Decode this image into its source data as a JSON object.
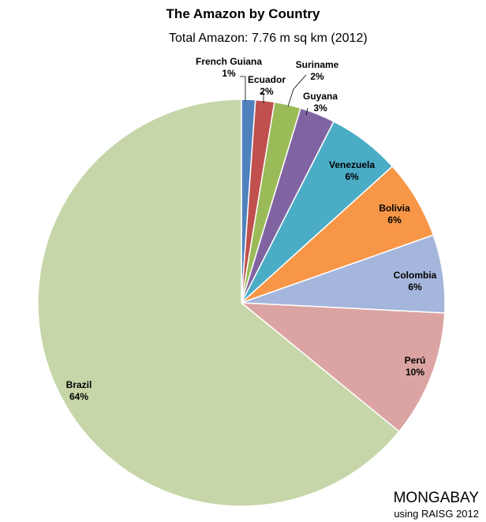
{
  "chart_data": {
    "type": "pie",
    "title": "The Amazon by Country",
    "subtitle": "Total Amazon: 7.76 m sq km (2012)",
    "slices": [
      {
        "label": "French Guiana",
        "pct_label": "1%",
        "value": 1.1,
        "color": "#4f81bd"
      },
      {
        "label": "Ecuador",
        "pct_label": "2%",
        "value": 1.5,
        "color": "#c0504d"
      },
      {
        "label": "Suriname",
        "pct_label": "2%",
        "value": 2.1,
        "color": "#9bbb59"
      },
      {
        "label": "Guyana",
        "pct_label": "3%",
        "value": 2.8,
        "color": "#8064a2"
      },
      {
        "label": "Venezuela",
        "pct_label": "6%",
        "value": 5.8,
        "color": "#4bacc6"
      },
      {
        "label": "Bolivia",
        "pct_label": "6%",
        "value": 6.3,
        "color": "#f79646"
      },
      {
        "label": "Colombia",
        "pct_label": "6%",
        "value": 6.2,
        "color": "#a5b6dc"
      },
      {
        "label": "Perú",
        "pct_label": "10%",
        "value": 10.1,
        "color": "#dba4a3"
      },
      {
        "label": "Brazil",
        "pct_label": "64%",
        "value": 64.1,
        "color": "#c6d6a8"
      }
    ],
    "legend": "none"
  },
  "credit": {
    "source": "MONGABAY",
    "note": "using RAISG 2012"
  }
}
